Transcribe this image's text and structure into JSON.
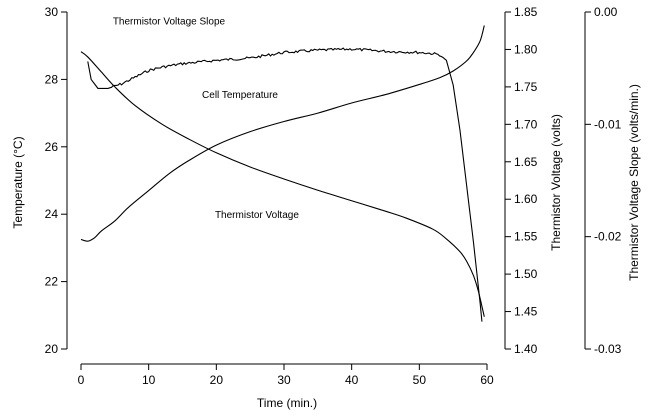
{
  "chart_data": {
    "type": "line",
    "title": "",
    "xlabel": "Time (min.)",
    "x_ticks": [
      "0",
      "10",
      "20",
      "30",
      "40",
      "50",
      "60"
    ],
    "xlim": [
      0,
      60
    ],
    "axes": [
      {
        "id": "left",
        "label": "Temperature (°C)",
        "ylim": [
          20,
          30
        ],
        "ticks": [
          {
            "v": 20,
            "label": "20"
          },
          {
            "v": 22,
            "label": "22"
          },
          {
            "v": 24,
            "label": "24"
          },
          {
            "v": 26,
            "label": "26"
          },
          {
            "v": 28,
            "label": "28"
          },
          {
            "v": 30,
            "label": "30"
          }
        ]
      },
      {
        "id": "right1",
        "label": "Thermistor Voltage (volts)",
        "ylim": [
          1.4,
          1.85
        ],
        "ticks": [
          {
            "v": 1.4,
            "label": "1.40"
          },
          {
            "v": 1.45,
            "label": "1.45"
          },
          {
            "v": 1.5,
            "label": "1.50"
          },
          {
            "v": 1.55,
            "label": "1.55"
          },
          {
            "v": 1.6,
            "label": "1.60"
          },
          {
            "v": 1.65,
            "label": "1.65"
          },
          {
            "v": 1.7,
            "label": "1.70"
          },
          {
            "v": 1.75,
            "label": "1.75"
          },
          {
            "v": 1.8,
            "label": "1.80"
          },
          {
            "v": 1.85,
            "label": "1.85"
          }
        ]
      },
      {
        "id": "right2",
        "label": "Thermistor Voltage Slope (volts/min.)",
        "ylim": [
          -0.03,
          0.0
        ],
        "ticks": [
          {
            "v": 0.0,
            "label": "0.00"
          },
          {
            "v": -0.01,
            "label": "-0.01"
          },
          {
            "v": -0.02,
            "label": "-0.02"
          },
          {
            "v": -0.03,
            "label": "-0.03"
          }
        ]
      }
    ],
    "series": [
      {
        "name": "Cell Temperature",
        "axis": "left",
        "noise": false,
        "label_at": [
          23.5,
          27.45
        ],
        "points": [
          [
            0,
            23.25
          ],
          [
            1,
            23.2
          ],
          [
            2,
            23.3
          ],
          [
            3,
            23.5
          ],
          [
            5,
            23.8
          ],
          [
            7,
            24.2
          ],
          [
            10,
            24.7
          ],
          [
            13,
            25.2
          ],
          [
            16,
            25.6
          ],
          [
            20,
            26.05
          ],
          [
            25,
            26.45
          ],
          [
            30,
            26.75
          ],
          [
            35,
            27.0
          ],
          [
            40,
            27.3
          ],
          [
            45,
            27.55
          ],
          [
            50,
            27.85
          ],
          [
            53,
            28.05
          ],
          [
            55,
            28.25
          ],
          [
            57,
            28.55
          ],
          [
            58,
            28.8
          ],
          [
            59,
            29.15
          ],
          [
            59.6,
            29.6
          ]
        ]
      },
      {
        "name": "Thermistor Voltage",
        "axis": "right1",
        "noise": false,
        "label_at": [
          26,
          1.575
        ],
        "points": [
          [
            0,
            1.797
          ],
          [
            1,
            1.79
          ],
          [
            3,
            1.77
          ],
          [
            5,
            1.75
          ],
          [
            8,
            1.725
          ],
          [
            12,
            1.7
          ],
          [
            16,
            1.68
          ],
          [
            20,
            1.662
          ],
          [
            25,
            1.643
          ],
          [
            30,
            1.627
          ],
          [
            35,
            1.612
          ],
          [
            40,
            1.598
          ],
          [
            45,
            1.584
          ],
          [
            48,
            1.575
          ],
          [
            52,
            1.56
          ],
          [
            54,
            1.547
          ],
          [
            56,
            1.53
          ],
          [
            57,
            1.517
          ],
          [
            58,
            1.498
          ],
          [
            58.7,
            1.478
          ],
          [
            59.2,
            1.459
          ],
          [
            59.6,
            1.443
          ]
        ]
      },
      {
        "name": "Thermistor Voltage Slope",
        "axis": "right2",
        "noise": true,
        "label_at": [
          13,
          -0.0011
        ],
        "points": [
          [
            1,
            -0.0044
          ],
          [
            1.5,
            -0.006
          ],
          [
            2.5,
            -0.0068
          ],
          [
            4,
            -0.0068
          ],
          [
            6,
            -0.0064
          ],
          [
            8,
            -0.0058
          ],
          [
            10,
            -0.0052
          ],
          [
            12,
            -0.0049
          ],
          [
            15,
            -0.0046
          ],
          [
            20,
            -0.0043
          ],
          [
            25,
            -0.0041
          ],
          [
            30,
            -0.0036
          ],
          [
            35,
            -0.0034
          ],
          [
            40,
            -0.0033
          ],
          [
            45,
            -0.0035
          ],
          [
            50,
            -0.0036
          ],
          [
            52,
            -0.0037
          ],
          [
            53,
            -0.0038
          ],
          [
            54,
            -0.0043
          ],
          [
            55,
            -0.0065
          ],
          [
            56,
            -0.0105
          ],
          [
            57,
            -0.0155
          ],
          [
            58,
            -0.0205
          ],
          [
            59,
            -0.026
          ],
          [
            59.4,
            -0.0285
          ]
        ]
      }
    ]
  }
}
